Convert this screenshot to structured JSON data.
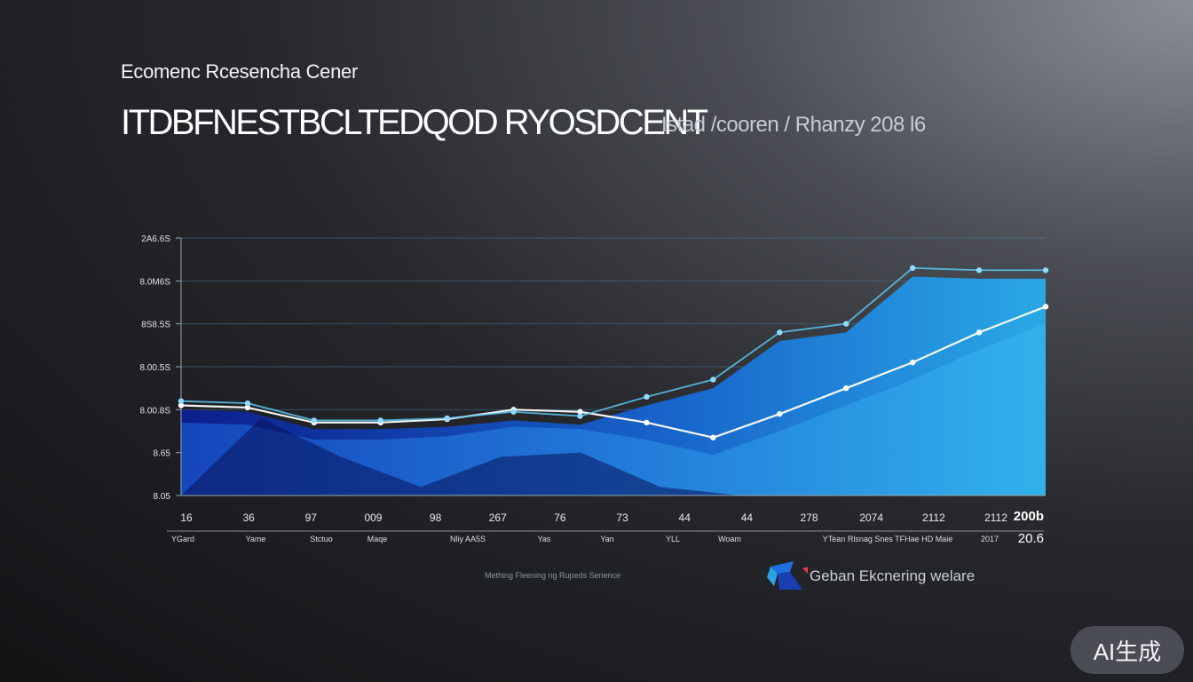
{
  "header": {
    "org": "Ecomenc Rcesencha Cener",
    "headline": "ITDBFNESTBCLTEDQOD RYOSDCENT",
    "subhead": "Istad /cooren / Rhanzy 208 l6"
  },
  "footer": {
    "source": "Mething Fleening ng Rupeds Serience",
    "brand": "Geban Ekcnering welare",
    "badge": "AI生成"
  },
  "colors": {
    "line_white": "#ffffff",
    "line_cyan": "#5bc8f2",
    "area_bright": "#2aa3e0",
    "area_deep": "#0b1d8a"
  },
  "chart_data": {
    "type": "line",
    "title": "ITDBFNESTBCLTEDQOD RYOSDCENT",
    "y_ticks": [
      "2A6.6S",
      "8.0M6S",
      "8S8.5S",
      "8.00.5S",
      "8.00.8S",
      "8.65",
      "8.05"
    ],
    "x_ticks": [
      "16",
      "36",
      "97",
      "009",
      "98",
      "267",
      "76",
      "73",
      "44",
      "44",
      "278",
      "2074",
      "2112",
      "2112"
    ],
    "x_labels": [
      "YGard",
      "Yame",
      "Stctuo",
      "Maqe",
      "Nliy AA5S",
      "Yas",
      "Yan",
      "YLL",
      "Woam",
      "YTean Rlsnag Snes TFHae HD Maie",
      "2017"
    ],
    "x_end_label": "200b",
    "x_end_sublabel": "20.6",
    "ylim": [
      0,
      6
    ],
    "x": [
      0,
      1,
      2,
      3,
      4,
      5,
      6,
      7,
      8,
      9,
      10,
      11,
      12,
      13
    ],
    "series": [
      {
        "values": [
          2.1,
          2.05,
          1.7,
          1.7,
          1.78,
          2.0,
          1.95,
          1.7,
          1.35,
          1.9,
          2.5,
          3.1,
          3.8,
          4.4
        ]
      },
      {
        "values": [
          2.2,
          2.15,
          1.75,
          1.75,
          1.8,
          1.95,
          1.85,
          2.3,
          2.7,
          3.8,
          4.0,
          5.3,
          5.25,
          5.25
        ]
      }
    ],
    "grid": true,
    "legend": "none"
  }
}
